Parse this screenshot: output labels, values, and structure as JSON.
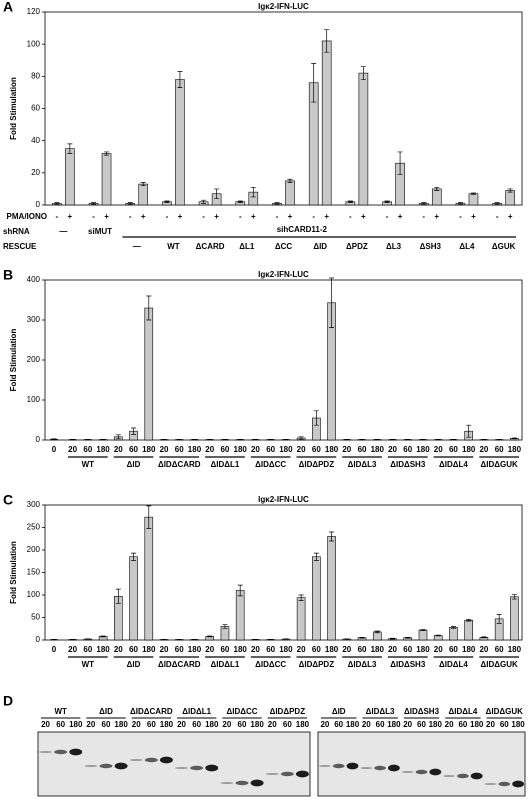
{
  "chart_data": [
    {
      "type": "bar",
      "panel_label": "A",
      "title": "Igκ2-IFN-LUC",
      "ylabel": "Fold Stimulation",
      "ylim": [
        0,
        120
      ],
      "yticks": [
        0,
        20,
        40,
        60,
        80,
        100,
        120
      ],
      "color": "#c8c8c8",
      "row_labels": [
        "PMA/IONO",
        "shRNA",
        "RESCUE"
      ],
      "shrna": [
        "—",
        "siMUT",
        "sihCARD11-2"
      ],
      "categories": [
        null,
        null,
        "—",
        "WT",
        "ΔCARD",
        "ΔL1",
        "ΔCC",
        "ΔID",
        "ΔPDZ",
        "ΔL3",
        "ΔSH3",
        "ΔL4",
        "ΔGUK"
      ],
      "series": [
        {
          "name": "-",
          "values": [
            1,
            1,
            1,
            2,
            2,
            2,
            1,
            76,
            2,
            2,
            1,
            1,
            1
          ],
          "errors": [
            0.5,
            0.5,
            0.5,
            0.5,
            1,
            0.5,
            0.5,
            12,
            0.5,
            0.5,
            0.5,
            0.5,
            0.5
          ]
        },
        {
          "name": "+",
          "values": [
            35,
            32,
            13,
            78,
            7,
            8,
            15,
            102,
            82,
            26,
            10,
            7,
            9
          ],
          "errors": [
            3,
            1,
            1,
            5,
            3,
            3,
            1,
            7,
            4,
            7,
            1,
            0.5,
            1
          ]
        }
      ]
    },
    {
      "type": "bar",
      "panel_label": "B",
      "title": "Igκ2-IFN-LUC",
      "ylabel": "Fold Stimulation",
      "ylim": [
        0,
        400
      ],
      "yticks": [
        0,
        100,
        200,
        300,
        400
      ],
      "color": "#c8c8c8",
      "control_label": "0",
      "control_value": 2,
      "control_error": 1,
      "categories": [
        "WT",
        "ΔID",
        "ΔIDΔCARD",
        "ΔIDΔL1",
        "ΔIDΔCC",
        "ΔIDΔPDZ",
        "ΔIDΔL3",
        "ΔIDΔSH3",
        "ΔIDΔL4",
        "ΔIDΔGUK"
      ],
      "series": [
        {
          "name": "20",
          "values": [
            1,
            8,
            1,
            1,
            1,
            5,
            1,
            1,
            1,
            1
          ],
          "errors": [
            0.5,
            5,
            0.5,
            0.5,
            0.5,
            3,
            0.5,
            0.5,
            0.5,
            0.5
          ]
        },
        {
          "name": "60",
          "values": [
            1,
            22,
            1,
            1,
            1,
            55,
            1,
            1,
            1,
            1
          ],
          "errors": [
            0.5,
            8,
            0.5,
            0.5,
            0.5,
            18,
            0.5,
            0.5,
            0.5,
            0.5
          ]
        },
        {
          "name": "180",
          "values": [
            1,
            330,
            1,
            1,
            1,
            343,
            1,
            1,
            22,
            4
          ],
          "errors": [
            0.5,
            30,
            0.5,
            0.5,
            0.5,
            62,
            0.5,
            0.5,
            15,
            1
          ]
        }
      ]
    },
    {
      "type": "bar",
      "panel_label": "C",
      "title": "Igκ2-IFN-LUC",
      "ylabel": "Fold Stimulation",
      "ylim": [
        0,
        300
      ],
      "yticks": [
        0,
        50,
        100,
        150,
        200,
        250,
        300
      ],
      "color": "#c8c8c8",
      "control_label": "0",
      "control_value": 1,
      "control_error": 0.5,
      "categories": [
        "WT",
        "ΔID",
        "ΔIDΔCARD",
        "ΔIDΔL1",
        "ΔIDΔCC",
        "ΔIDΔPDZ",
        "ΔIDΔL3",
        "ΔIDΔSH3",
        "ΔIDΔL4",
        "ΔIDΔGUK"
      ],
      "series": [
        {
          "name": "20",
          "values": [
            1,
            97,
            1,
            8,
            1,
            94,
            2,
            3,
            10,
            6
          ],
          "errors": [
            0.5,
            16,
            0.5,
            1,
            0.5,
            6,
            0.5,
            1,
            1,
            1
          ]
        },
        {
          "name": "60",
          "values": [
            2,
            185,
            1,
            30,
            1,
            185,
            5,
            5,
            28,
            47
          ],
          "errors": [
            0.5,
            8,
            0.5,
            4,
            0.5,
            8,
            1,
            1,
            2,
            10
          ]
        },
        {
          "name": "180",
          "values": [
            8,
            273,
            1,
            110,
            2,
            230,
            18,
            22,
            44,
            96
          ],
          "errors": [
            1,
            25,
            0.5,
            12,
            0.5,
            10,
            2,
            1,
            2,
            5
          ]
        }
      ]
    }
  ],
  "blot": {
    "panel_label": "D",
    "lanes": [
      "20",
      "60",
      "180"
    ],
    "left": [
      "WT",
      "ΔID",
      "ΔIDΔCARD",
      "ΔIDΔL1",
      "ΔIDΔCC",
      "ΔIDΔPDZ"
    ],
    "right": [
      "ΔID",
      "ΔIDΔL3",
      "ΔIDΔSH3",
      "ΔIDΔL4",
      "ΔIDΔGUK"
    ]
  }
}
